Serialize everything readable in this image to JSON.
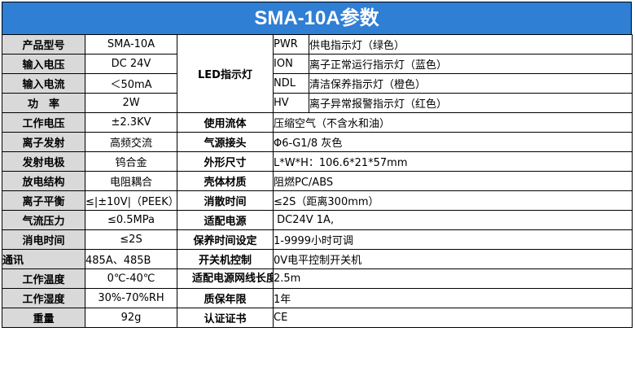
{
  "title": "SMA-10A参数",
  "rows": [
    {
      "label": "产品型号",
      "value": "SMA-10A"
    },
    {
      "label": "输入电压",
      "value": "DC 24V"
    },
    {
      "label": "输入电流",
      "value": "＜50mA"
    },
    {
      "label": "功　率",
      "value": "2W"
    },
    {
      "label": "工作电压",
      "value": "±2.3KV",
      "label2": "使用流体",
      "value2": "压缩空气（不含水和油）"
    },
    {
      "label": "离子发射",
      "value": "高频交流",
      "label2": "气源接头",
      "value2": "Φ6-G1/8 灰色"
    },
    {
      "label": "发射电极",
      "value": "钨合金",
      "label2": "外形尺寸",
      "value2": "L*W*H：106.6*21*57mm"
    },
    {
      "label": "放电结构",
      "value": "电阻耦合",
      "label2": "壳体材质",
      "value2": "阻燃PC/ABS"
    },
    {
      "label": "离子平衡",
      "value": "≤|±10V|（PEEK）",
      "label2": "消散时间",
      "value2": "≤2S（距离300mm）"
    },
    {
      "label": "气流压力",
      "value": "≤0.5MPa",
      "label2": "适配电源",
      "value2": " DC24V 1A,"
    },
    {
      "label": "消电时间",
      "value": "≤2S",
      "label2": "保养时间设定",
      "value2": "1-9999小时可调"
    },
    {
      "label": "通讯",
      "value": "485A、485B",
      "label2": "开关机控制",
      "value2": "0V电平控制开关机"
    },
    {
      "label": "工作温度",
      "value": "0℃-40℃",
      "label2": "适配电源网线长度",
      "value2": "2.5m"
    },
    {
      "label": "工作湿度",
      "value": "30%-70%RH",
      "label2": "质保年限",
      "value2": "1年"
    },
    {
      "label": "重量",
      "value": "92g",
      "label2": "认证证书",
      "value2": "CE"
    }
  ],
  "led": {
    "group_label": "LED指示灯",
    "items": [
      {
        "key": "PWR",
        "desc": "供电指示灯（绿色）"
      },
      {
        "key": "ION",
        "desc": "离子正常运行指示灯（蓝色）"
      },
      {
        "key": "NDL",
        "desc": "清洁保养指示灯（橙色）"
      },
      {
        "key": "HV",
        "desc": "离子异常报警指示灯（红色）"
      }
    ]
  },
  "colors": {
    "header_bg": "#2f7fd4",
    "label_bg": "#d9d9d9"
  }
}
